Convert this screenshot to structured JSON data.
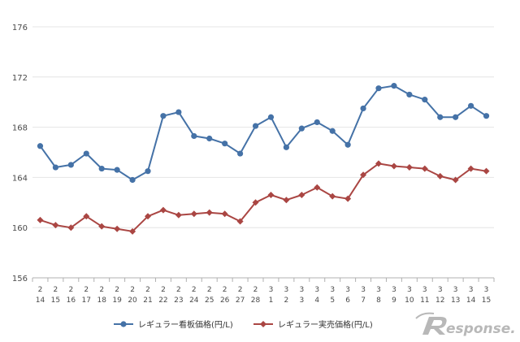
{
  "chart_data": {
    "type": "line",
    "title": "",
    "xlabel": "",
    "ylabel": "",
    "ylim": [
      156,
      176
    ],
    "yticks": [
      156,
      160,
      164,
      168,
      172,
      176
    ],
    "grid": "horizontal",
    "legend_position": "bottom",
    "categories": [
      {
        "month": "2",
        "day": "14"
      },
      {
        "month": "2",
        "day": "15"
      },
      {
        "month": "2",
        "day": "16"
      },
      {
        "month": "2",
        "day": "17"
      },
      {
        "month": "2",
        "day": "18"
      },
      {
        "month": "2",
        "day": "19"
      },
      {
        "month": "2",
        "day": "20"
      },
      {
        "month": "2",
        "day": "21"
      },
      {
        "month": "2",
        "day": "22"
      },
      {
        "month": "2",
        "day": "23"
      },
      {
        "month": "2",
        "day": "24"
      },
      {
        "month": "2",
        "day": "25"
      },
      {
        "month": "2",
        "day": "26"
      },
      {
        "month": "2",
        "day": "27"
      },
      {
        "month": "2",
        "day": "28"
      },
      {
        "month": "3",
        "day": "1"
      },
      {
        "month": "3",
        "day": "2"
      },
      {
        "month": "3",
        "day": "3"
      },
      {
        "month": "3",
        "day": "4"
      },
      {
        "month": "3",
        "day": "5"
      },
      {
        "month": "3",
        "day": "6"
      },
      {
        "month": "3",
        "day": "7"
      },
      {
        "month": "3",
        "day": "8"
      },
      {
        "month": "3",
        "day": "9"
      },
      {
        "month": "3",
        "day": "10"
      },
      {
        "month": "3",
        "day": "11"
      },
      {
        "month": "3",
        "day": "12"
      },
      {
        "month": "3",
        "day": "13"
      },
      {
        "month": "3",
        "day": "14"
      },
      {
        "month": "3",
        "day": "15"
      }
    ],
    "series": [
      {
        "name": "レギュラー看板価格(円/L)",
        "color": "#4572a7",
        "marker": "circle",
        "values": [
          166.5,
          164.8,
          165.0,
          165.9,
          164.7,
          164.6,
          163.8,
          164.5,
          168.9,
          169.2,
          167.3,
          167.1,
          166.7,
          165.9,
          168.1,
          168.8,
          166.4,
          167.9,
          168.4,
          167.7,
          166.6,
          169.5,
          171.1,
          171.3,
          170.6,
          170.2,
          168.8,
          168.8,
          169.7,
          168.9
        ]
      },
      {
        "name": "レギュラー実売価格(円/L)",
        "color": "#aa4643",
        "marker": "diamond",
        "values": [
          160.6,
          160.2,
          160.0,
          160.9,
          160.1,
          159.9,
          159.7,
          160.9,
          161.4,
          161.0,
          161.1,
          161.2,
          161.1,
          160.5,
          162.0,
          162.6,
          162.2,
          162.6,
          163.2,
          162.5,
          162.3,
          164.2,
          165.1,
          164.9,
          164.8,
          164.7,
          164.1,
          163.8,
          164.7,
          164.5
        ]
      }
    ]
  },
  "watermark": {
    "text": "esponse.",
    "icon": "response-r-logo-icon",
    "color": "#b8b8b8"
  }
}
